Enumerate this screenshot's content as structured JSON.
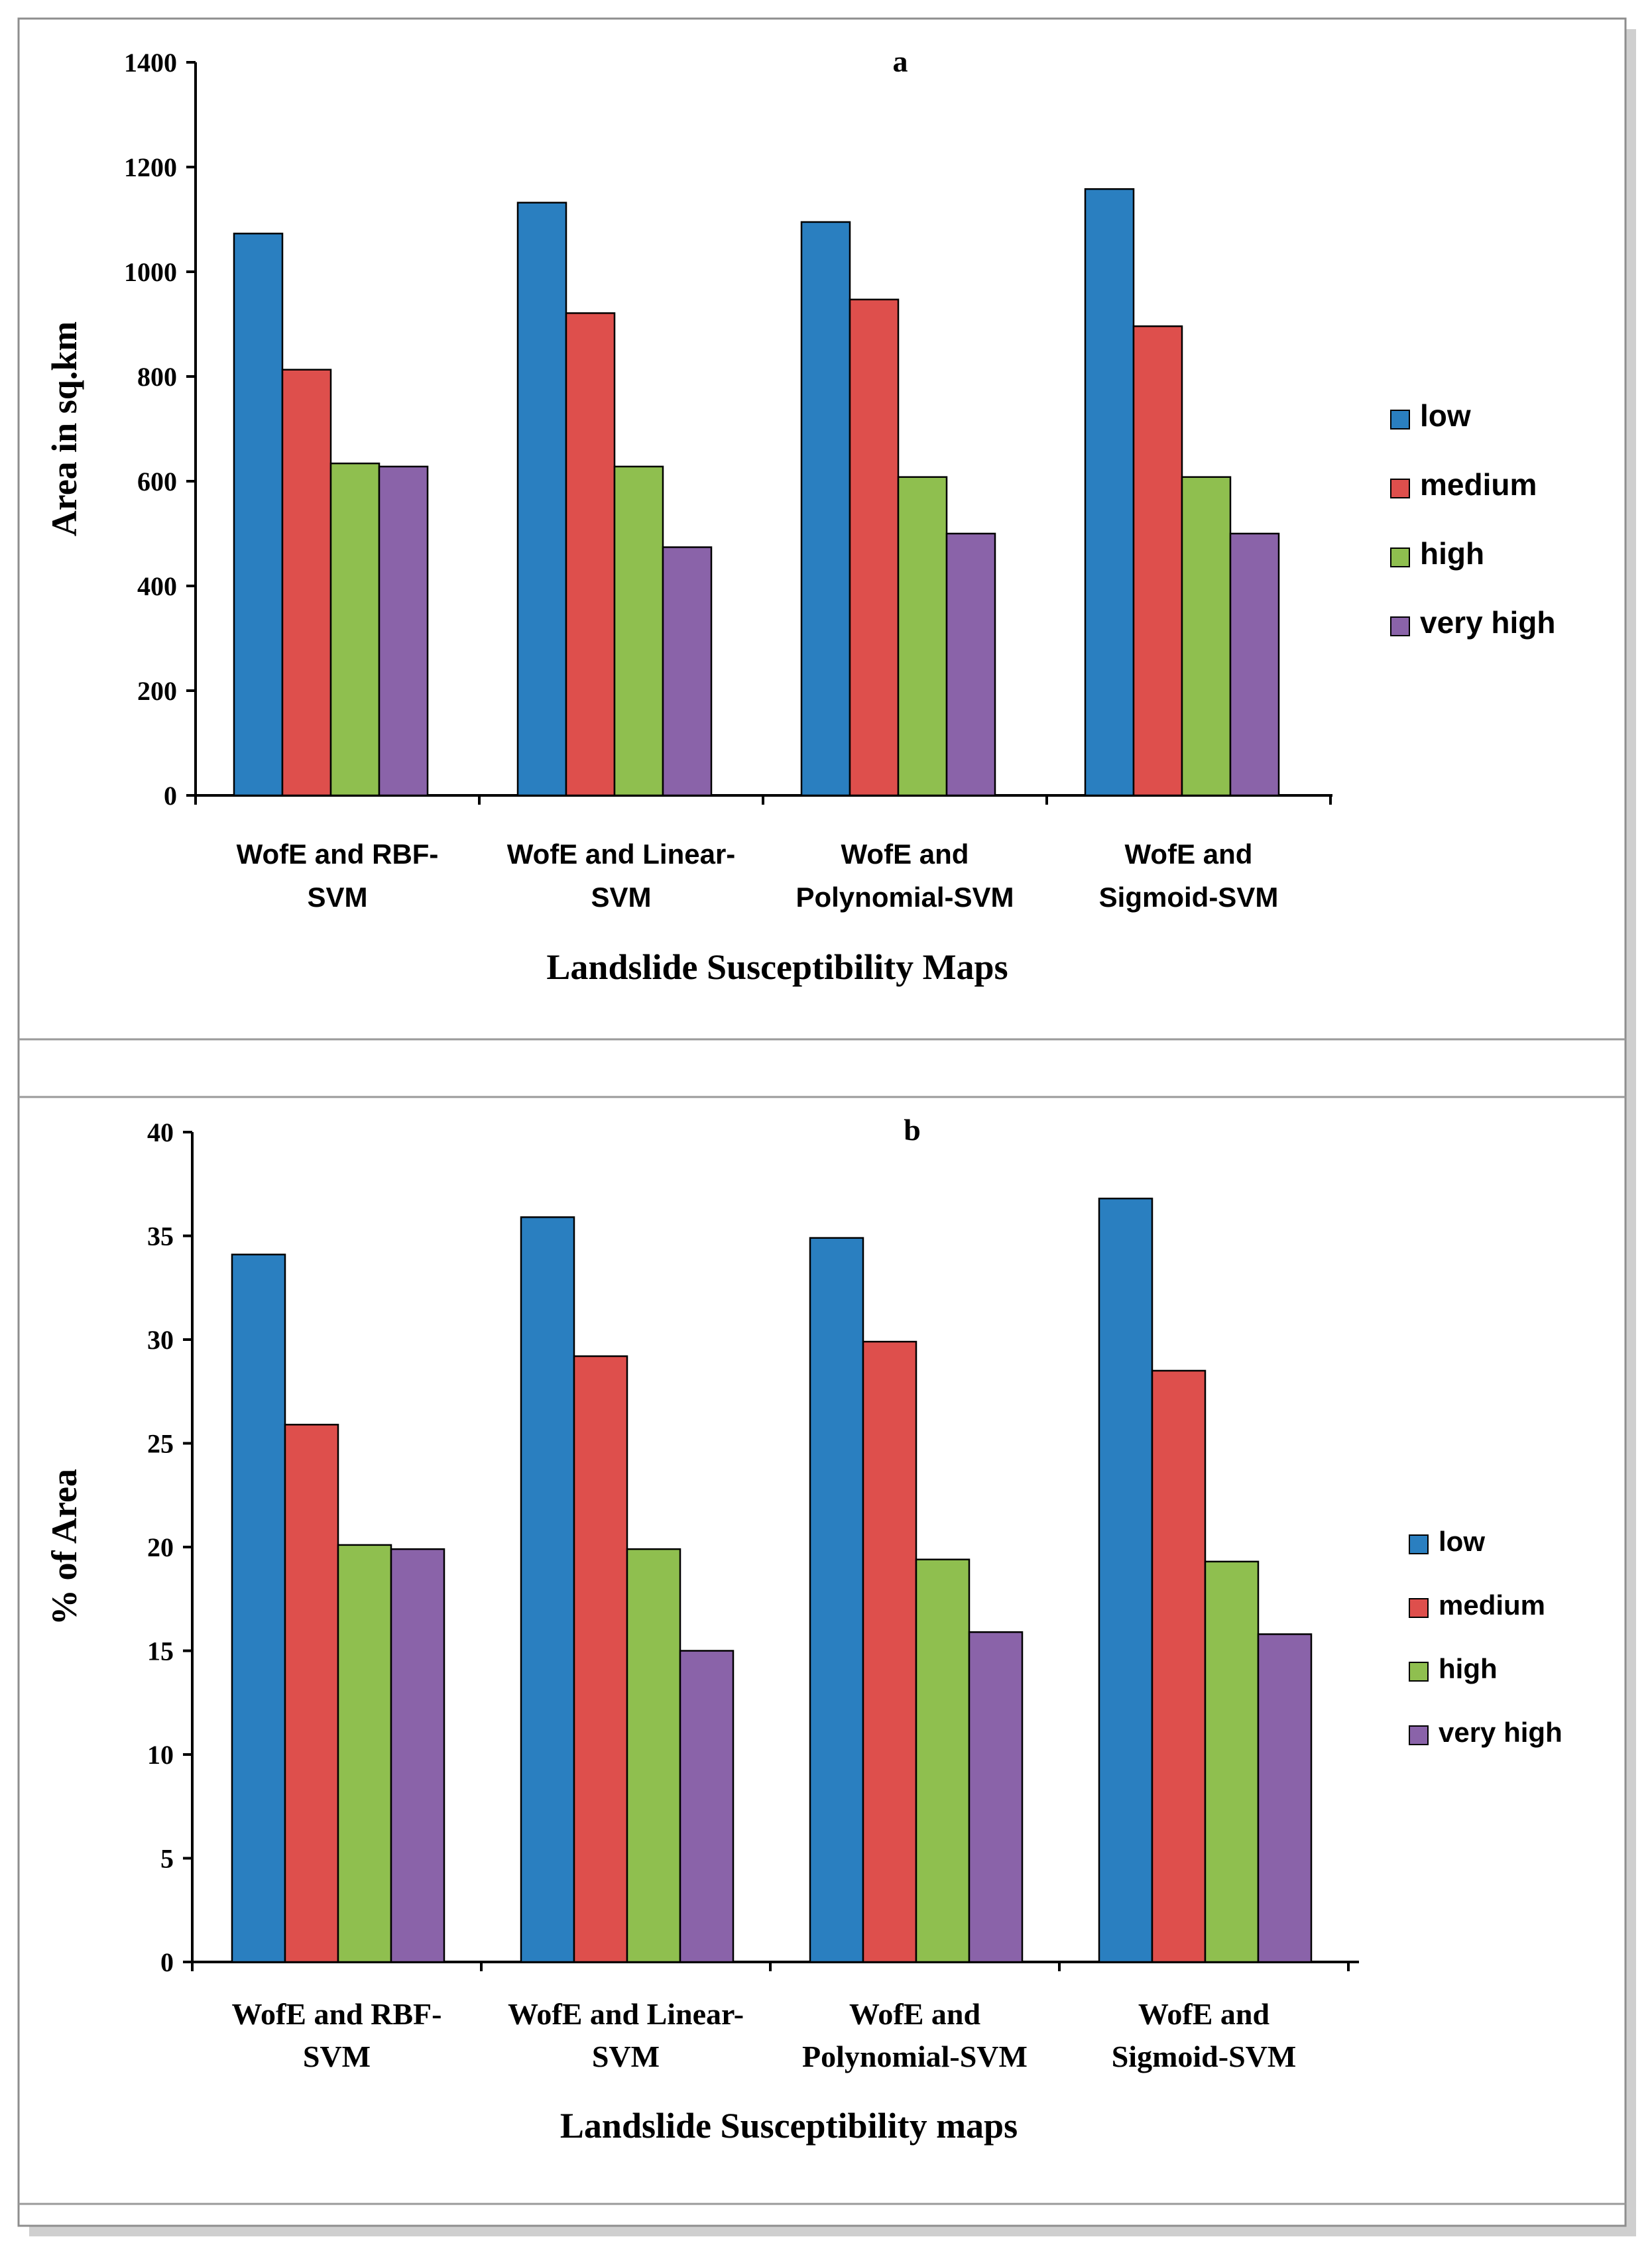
{
  "legend_labels": [
    "low",
    "medium",
    "high",
    "very high"
  ],
  "colors": {
    "series": [
      "#2A7FC0",
      "#DE4F4C",
      "#8FBF4F",
      "#8A63A9"
    ],
    "axis": "#000000",
    "frame": "#9a9a9a"
  },
  "chart_data": [
    {
      "panel": "a",
      "type": "bar",
      "title": "a",
      "xlabel": "Landslide Susceptibility  Maps",
      "ylabel": "Area in sq.km",
      "ylim": [
        0,
        1400
      ],
      "yticks": [
        0,
        200,
        400,
        600,
        800,
        1000,
        1200,
        1400
      ],
      "grid": false,
      "legend_position": "right",
      "categories": [
        [
          "WofE and  RBF-",
          "SVM"
        ],
        [
          "WofE and  Linear-",
          "SVM"
        ],
        [
          "WofE and",
          "Polynomial-SVM"
        ],
        [
          "WofE and",
          "Sigmoid-SVM"
        ]
      ],
      "series": [
        {
          "name": "low",
          "values": [
            1073,
            1132,
            1095,
            1158
          ]
        },
        {
          "name": "medium",
          "values": [
            813,
            921,
            947,
            896
          ]
        },
        {
          "name": "high",
          "values": [
            634,
            628,
            608,
            608
          ]
        },
        {
          "name": "very high",
          "values": [
            628,
            474,
            500,
            500
          ]
        }
      ]
    },
    {
      "panel": "b",
      "type": "bar",
      "title": "b",
      "xlabel": "Landslide Susceptibility maps",
      "ylabel": "% of Area",
      "ylim": [
        0,
        40
      ],
      "yticks": [
        0,
        5,
        10,
        15,
        20,
        25,
        30,
        35,
        40
      ],
      "grid": false,
      "legend_position": "right",
      "categories": [
        [
          "WofE and RBF-",
          "SVM"
        ],
        [
          "WofE and Linear-",
          "SVM"
        ],
        [
          "WofE and",
          "Polynomial-SVM"
        ],
        [
          "WofE and",
          "Sigmoid-SVM"
        ]
      ],
      "series": [
        {
          "name": "low",
          "values": [
            34.1,
            35.9,
            34.9,
            36.8
          ]
        },
        {
          "name": "medium",
          "values": [
            25.9,
            29.2,
            29.9,
            28.5
          ]
        },
        {
          "name": "high",
          "values": [
            20.1,
            19.9,
            19.4,
            19.3
          ]
        },
        {
          "name": "very high",
          "values": [
            19.9,
            15.0,
            15.9,
            15.8
          ]
        }
      ]
    }
  ]
}
